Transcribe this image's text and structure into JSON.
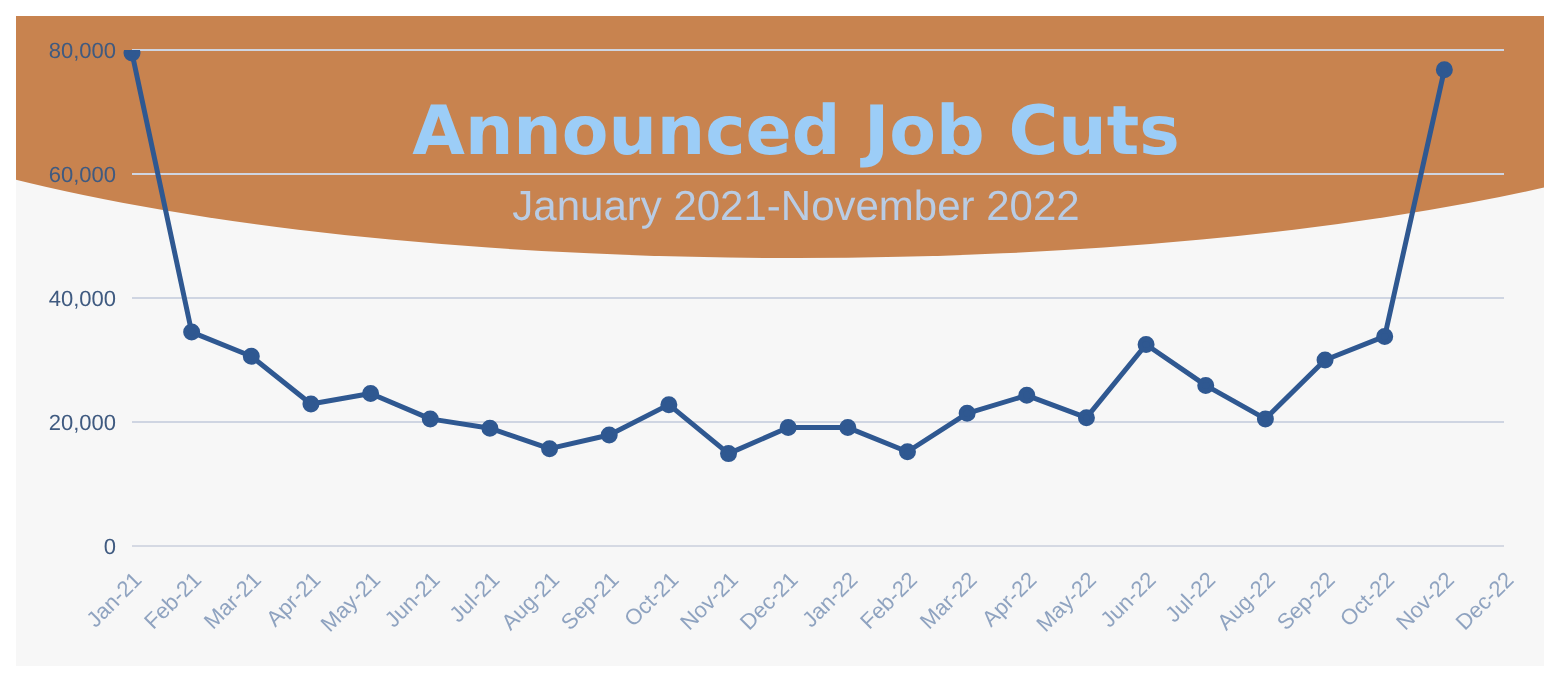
{
  "chart_data": {
    "type": "line",
    "title": "Announced Job Cuts",
    "subtitle": "January 2021-November 2022",
    "categories": [
      "Jan-21",
      "Feb-21",
      "Mar-21",
      "Apr-21",
      "May-21",
      "Jun-21",
      "Jul-21",
      "Aug-21",
      "Sep-21",
      "Oct-21",
      "Nov-21",
      "Dec-21",
      "Jan-22",
      "Feb-22",
      "Mar-22",
      "Apr-22",
      "May-22",
      "Jun-22",
      "Jul-22",
      "Aug-22",
      "Sep-22",
      "Oct-22",
      "Nov-22",
      "Dec-22"
    ],
    "series": [
      {
        "color": "#2f5891",
        "values": [
          79500,
          34500,
          30600,
          22900,
          24600,
          20500,
          19000,
          15700,
          17900,
          22800,
          14900,
          19100,
          19100,
          15200,
          21400,
          24300,
          20700,
          32500,
          25900,
          20500,
          30000,
          33800,
          76800,
          null
        ]
      }
    ],
    "ylim": [
      0,
      80000
    ],
    "yticks": [
      {
        "value": 0,
        "label": "0"
      },
      {
        "value": 20000,
        "label": "20,000"
      },
      {
        "value": 40000,
        "label": "40,000"
      },
      {
        "value": 60000,
        "label": "60,000"
      },
      {
        "value": 80000,
        "label": "80,000"
      }
    ],
    "grid": "y",
    "marker": "circle",
    "line_style": "solid",
    "legend": false
  }
}
